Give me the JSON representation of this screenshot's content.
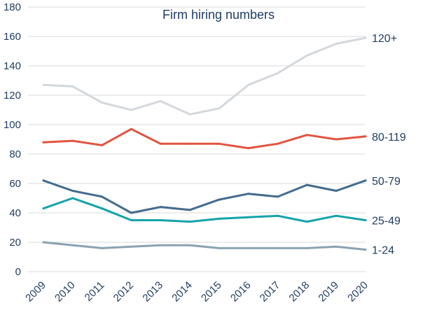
{
  "chart_data": {
    "type": "line",
    "title": "Firm hiring numbers",
    "xlabel": "",
    "ylabel": "",
    "ylim": [
      0,
      180
    ],
    "yticks": [
      0,
      20,
      40,
      60,
      80,
      100,
      120,
      140,
      160,
      180
    ],
    "categories": [
      "2009",
      "2010",
      "2011",
      "2012",
      "2013",
      "2014",
      "2015",
      "2016",
      "2017",
      "2018",
      "2019",
      "2020"
    ],
    "grid": true,
    "series": [
      {
        "name": "120+",
        "color": "#d3d8de",
        "values": [
          127,
          126,
          115,
          110,
          116,
          107,
          111,
          127,
          135,
          147,
          155,
          159
        ]
      },
      {
        "name": "80-119",
        "color": "#e2533f",
        "values": [
          88,
          89,
          86,
          97,
          87,
          87,
          87,
          84,
          87,
          93,
          90,
          92
        ]
      },
      {
        "name": "50-79",
        "color": "#436b8d",
        "values": [
          62,
          55,
          51,
          40,
          44,
          42,
          49,
          53,
          51,
          59,
          55,
          62
        ]
      },
      {
        "name": "25-49",
        "color": "#14a3ab",
        "values": [
          43,
          50,
          43,
          35,
          35,
          34,
          36,
          37,
          38,
          34,
          38,
          35
        ]
      },
      {
        "name": "1-24",
        "color": "#8ba2b2",
        "values": [
          20,
          18,
          16,
          17,
          18,
          18,
          16,
          16,
          16,
          16,
          17,
          15
        ]
      }
    ]
  }
}
